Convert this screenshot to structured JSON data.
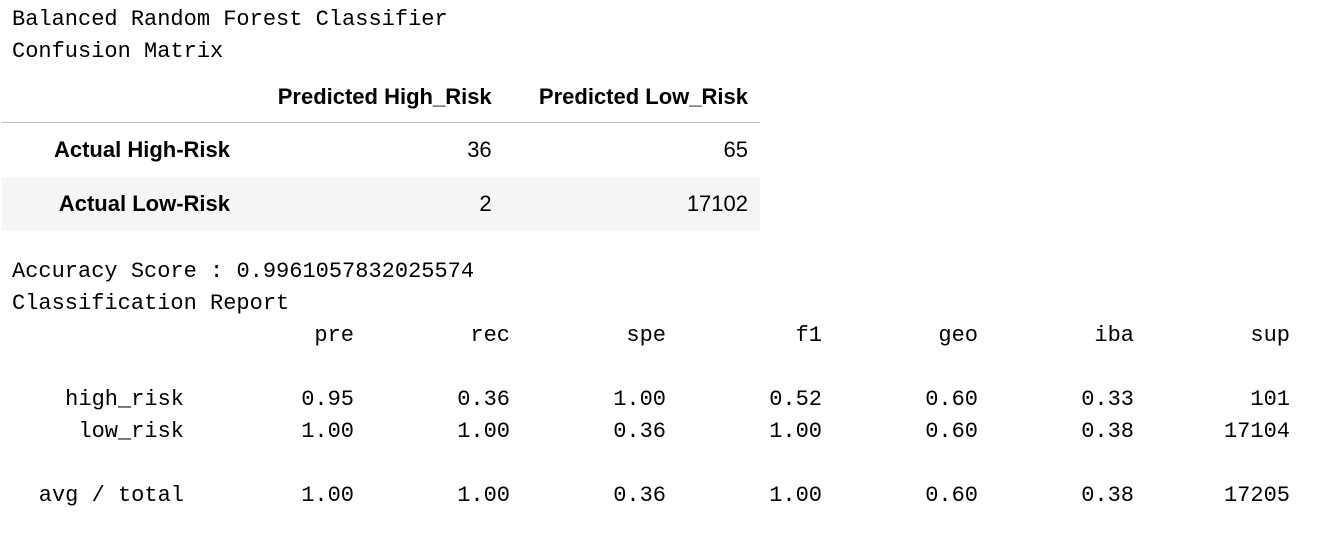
{
  "title": "Balanced Random Forest Classifier",
  "confusion_matrix": {
    "heading": "Confusion Matrix",
    "columns": [
      "Predicted High_Risk",
      "Predicted Low_Risk"
    ],
    "rows": [
      {
        "label": "Actual High-Risk",
        "values": [
          "36",
          "65"
        ]
      },
      {
        "label": "Actual Low-Risk",
        "values": [
          "2",
          "17102"
        ]
      }
    ]
  },
  "accuracy": {
    "label": "Accuracy Score :",
    "value": "0.9961057832025574"
  },
  "report": {
    "heading": "Classification Report",
    "columns": [
      "pre",
      "rec",
      "spe",
      "f1",
      "geo",
      "iba",
      "sup"
    ],
    "rows": [
      {
        "label": "high_risk",
        "values": [
          "0.95",
          "0.36",
          "1.00",
          "0.52",
          "0.60",
          "0.33",
          "101"
        ]
      },
      {
        "label": "low_risk",
        "values": [
          "1.00",
          "1.00",
          "0.36",
          "1.00",
          "0.60",
          "0.38",
          "17104"
        ]
      },
      {
        "label": "avg / total",
        "values": [
          "1.00",
          "1.00",
          "0.36",
          "1.00",
          "0.60",
          "0.38",
          "17205"
        ]
      }
    ]
  }
}
